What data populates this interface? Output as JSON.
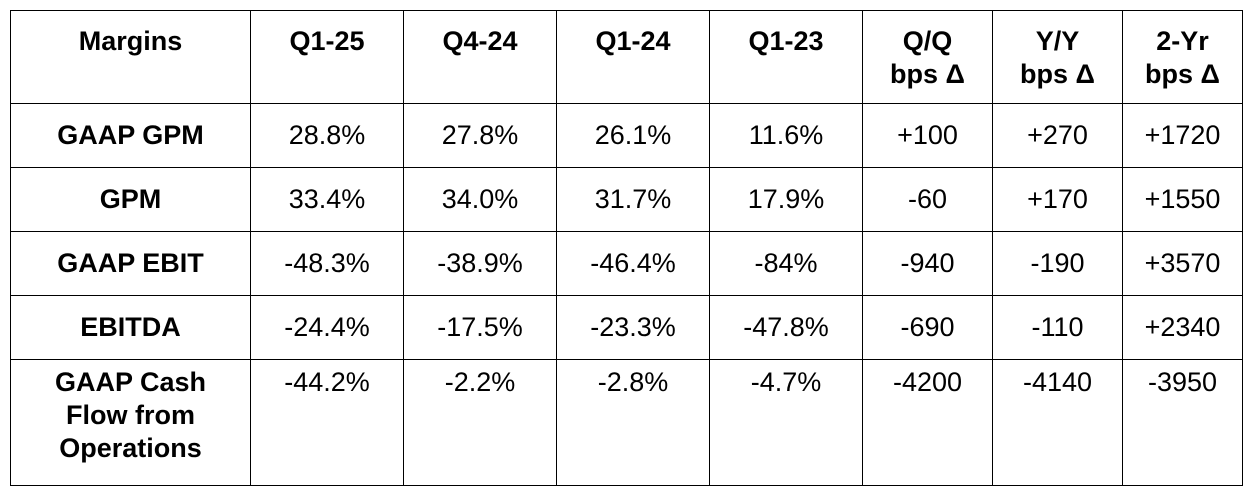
{
  "table": {
    "headers": [
      {
        "lines": [
          "Margins"
        ]
      },
      {
        "lines": [
          "Q1-25"
        ]
      },
      {
        "lines": [
          "Q4-24"
        ]
      },
      {
        "lines": [
          "Q1-24"
        ]
      },
      {
        "lines": [
          "Q1-23"
        ]
      },
      {
        "lines": [
          "Q/Q",
          "bps Δ"
        ]
      },
      {
        "lines": [
          "Y/Y",
          "bps Δ"
        ]
      },
      {
        "lines": [
          "2-Yr",
          "bps Δ"
        ]
      }
    ],
    "rows": [
      {
        "label": [
          "GAAP GPM"
        ],
        "values": [
          "28.8%",
          "27.8%",
          "26.1%",
          "11.6%",
          "+100",
          "+270",
          "+1720"
        ]
      },
      {
        "label": [
          "GPM"
        ],
        "values": [
          "33.4%",
          "34.0%",
          "31.7%",
          "17.9%",
          "-60",
          "+170",
          "+1550"
        ]
      },
      {
        "label": [
          "GAAP EBIT"
        ],
        "values": [
          "-48.3%",
          "-38.9%",
          "-46.4%",
          "-84%",
          "-940",
          "-190",
          "+3570"
        ]
      },
      {
        "label": [
          "EBITDA"
        ],
        "values": [
          "-24.4%",
          "-17.5%",
          "-23.3%",
          "-47.8%",
          "-690",
          "-110",
          "+2340"
        ]
      },
      {
        "label": [
          "GAAP Cash",
          "Flow from",
          "Operations"
        ],
        "values": [
          "-44.2%",
          "-2.2%",
          "-2.8%",
          "-4.7%",
          "-4200",
          "-4140",
          "-3950"
        ]
      }
    ]
  }
}
